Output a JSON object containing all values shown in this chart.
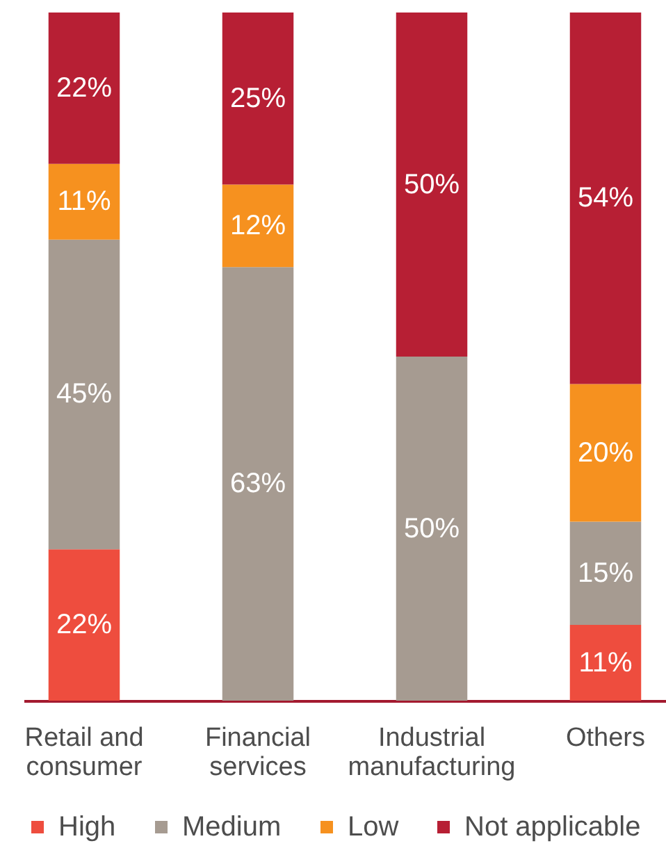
{
  "chart_data": {
    "type": "bar",
    "stacked": true,
    "categories": [
      "Retail and consumer",
      "Financial services",
      "Industrial manufacturing",
      "Others"
    ],
    "series": [
      {
        "name": "High",
        "color": "#ee4d3e",
        "values": [
          22,
          null,
          null,
          11
        ],
        "value_labels": [
          "22%",
          null,
          null,
          "11%"
        ]
      },
      {
        "name": "Medium",
        "color": "#a69b91",
        "values": [
          45,
          63,
          50,
          15
        ],
        "value_labels": [
          "45%",
          "63%",
          "50%",
          "15%"
        ]
      },
      {
        "name": "Low",
        "color": "#f6911f",
        "values": [
          11,
          12,
          null,
          20
        ],
        "value_labels": [
          "11%",
          "12%",
          null,
          "20%"
        ]
      },
      {
        "name": "Not applicable",
        "color": "#b71f34",
        "values": [
          22,
          25,
          50,
          54
        ],
        "value_labels": [
          "22%",
          "25%",
          "50%",
          "54%"
        ]
      }
    ],
    "ylim": [
      0,
      100
    ],
    "tick_labels": "x",
    "legend": "bottom"
  }
}
